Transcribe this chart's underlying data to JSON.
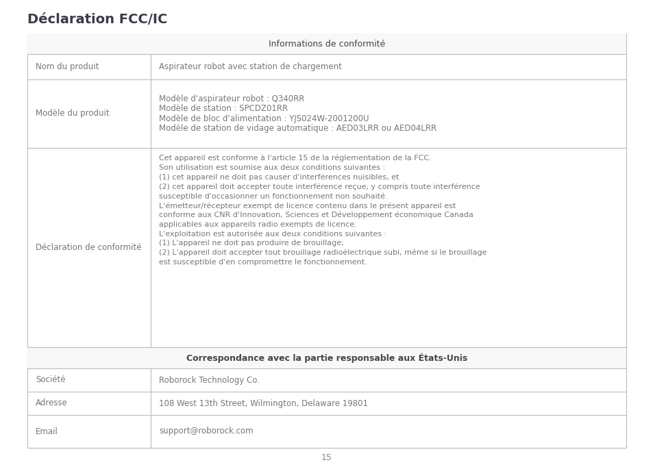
{
  "title": "Déclaration FCC/IC",
  "page_number": "15",
  "background_color": "#ffffff",
  "border_color": "#bbbbbb",
  "header_bg_color": "#f8f8f8",
  "cell_text_color": "#777777",
  "header_text_color": "#444444",
  "title_color": "#3a3a4a",
  "section1_header": "Informations de conformité",
  "section2_header": "Correspondance avec la partie responsable aux États-Unis",
  "row1_label": "Nom du produit",
  "row1_content": "Aspirateur robot avec station de chargement",
  "row2_label": "Modèle du produit",
  "row2_content": [
    "Modèle d'aspirateur robot : Q340RR",
    "Modèle de station : SPCDZ01RR",
    "Modèle de bloc d'alimentation : YJS024W-2001200U",
    "Modèle de station de vidage automatique : AED03LRR ou AED04LRR"
  ],
  "row3_label": "Déclaration de conformité",
  "row3_content": [
    "Cet appareil est conforme à l'article 15 de la réglementation de la FCC.",
    "Son utilisation est soumise aux deux conditions suivantes :",
    "(1) cet appareil ne doit pas causer d'interférences nuisibles, et",
    "(2) cet appareil doit accepter toute interférence reçue, y compris toute interférence",
    "susceptible d'occasionner un fonctionnement non souhaité.",
    "L'émetteur/récepteur exempt de licence contenu dans le présent appareil est",
    "conforme aux CNR d'Innovation, Sciences et Développement économique Canada",
    "applicables aux appareils radio exempts de licence.",
    "L'exploitation est autorisée aux deux conditions suivantes :",
    "(1) L'appareil ne doit pas produire de brouillage;",
    "(2) L'appareil doit accepter tout brouillage radioélectrique subi, même si le brouillage",
    "est susceptible d'en compromettre le fonctionnement."
  ],
  "soc_label": "Société",
  "soc_content": "Roborock Technology Co.",
  "adr_label": "Adresse",
  "adr_content": "108 West 13th Street, Wilmington, Delaware 19801",
  "email_label": "Email",
  "email_content": "support@roborock.com"
}
